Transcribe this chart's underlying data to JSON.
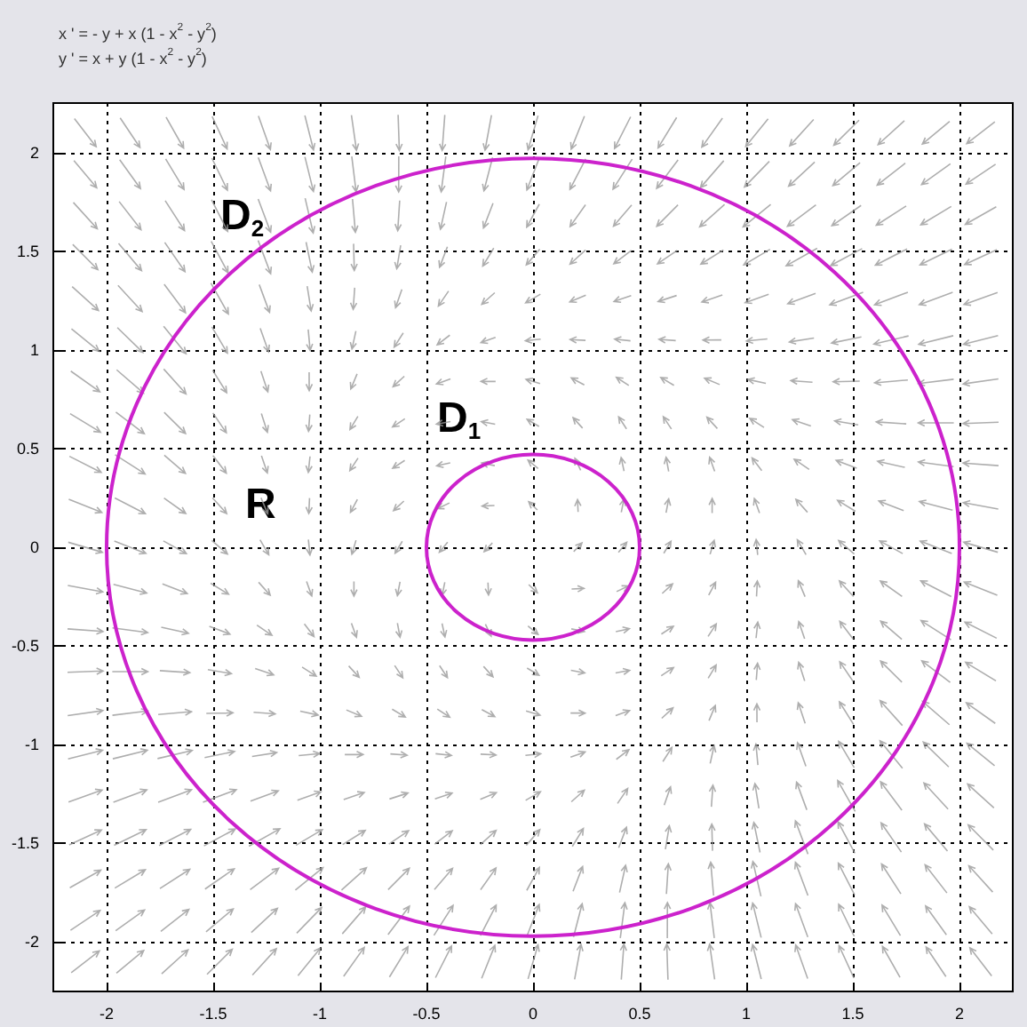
{
  "chart_data": {
    "type": "line",
    "title": "x ' = - y + x (1 - x$^{2}$ - y$^{2}$)",
    "subtitle": "y ' = x + y (1 - x$^{2}$ - y$^{2}$)",
    "annotations": [
      "D$_{2}$",
      "D$_{1}$",
      "R"
    ],
    "xlim": [
      -2.25,
      2.25
    ],
    "ylim": [
      -2.25,
      2.25
    ],
    "xticks": [
      -2,
      -1.5,
      -1,
      -0.5,
      0,
      0.5,
      1,
      1.5,
      2
    ],
    "yticks": [
      -2,
      -1.5,
      -1,
      -0.5,
      0,
      0.5,
      1,
      1.5,
      2
    ],
    "grid": true
  }
}
